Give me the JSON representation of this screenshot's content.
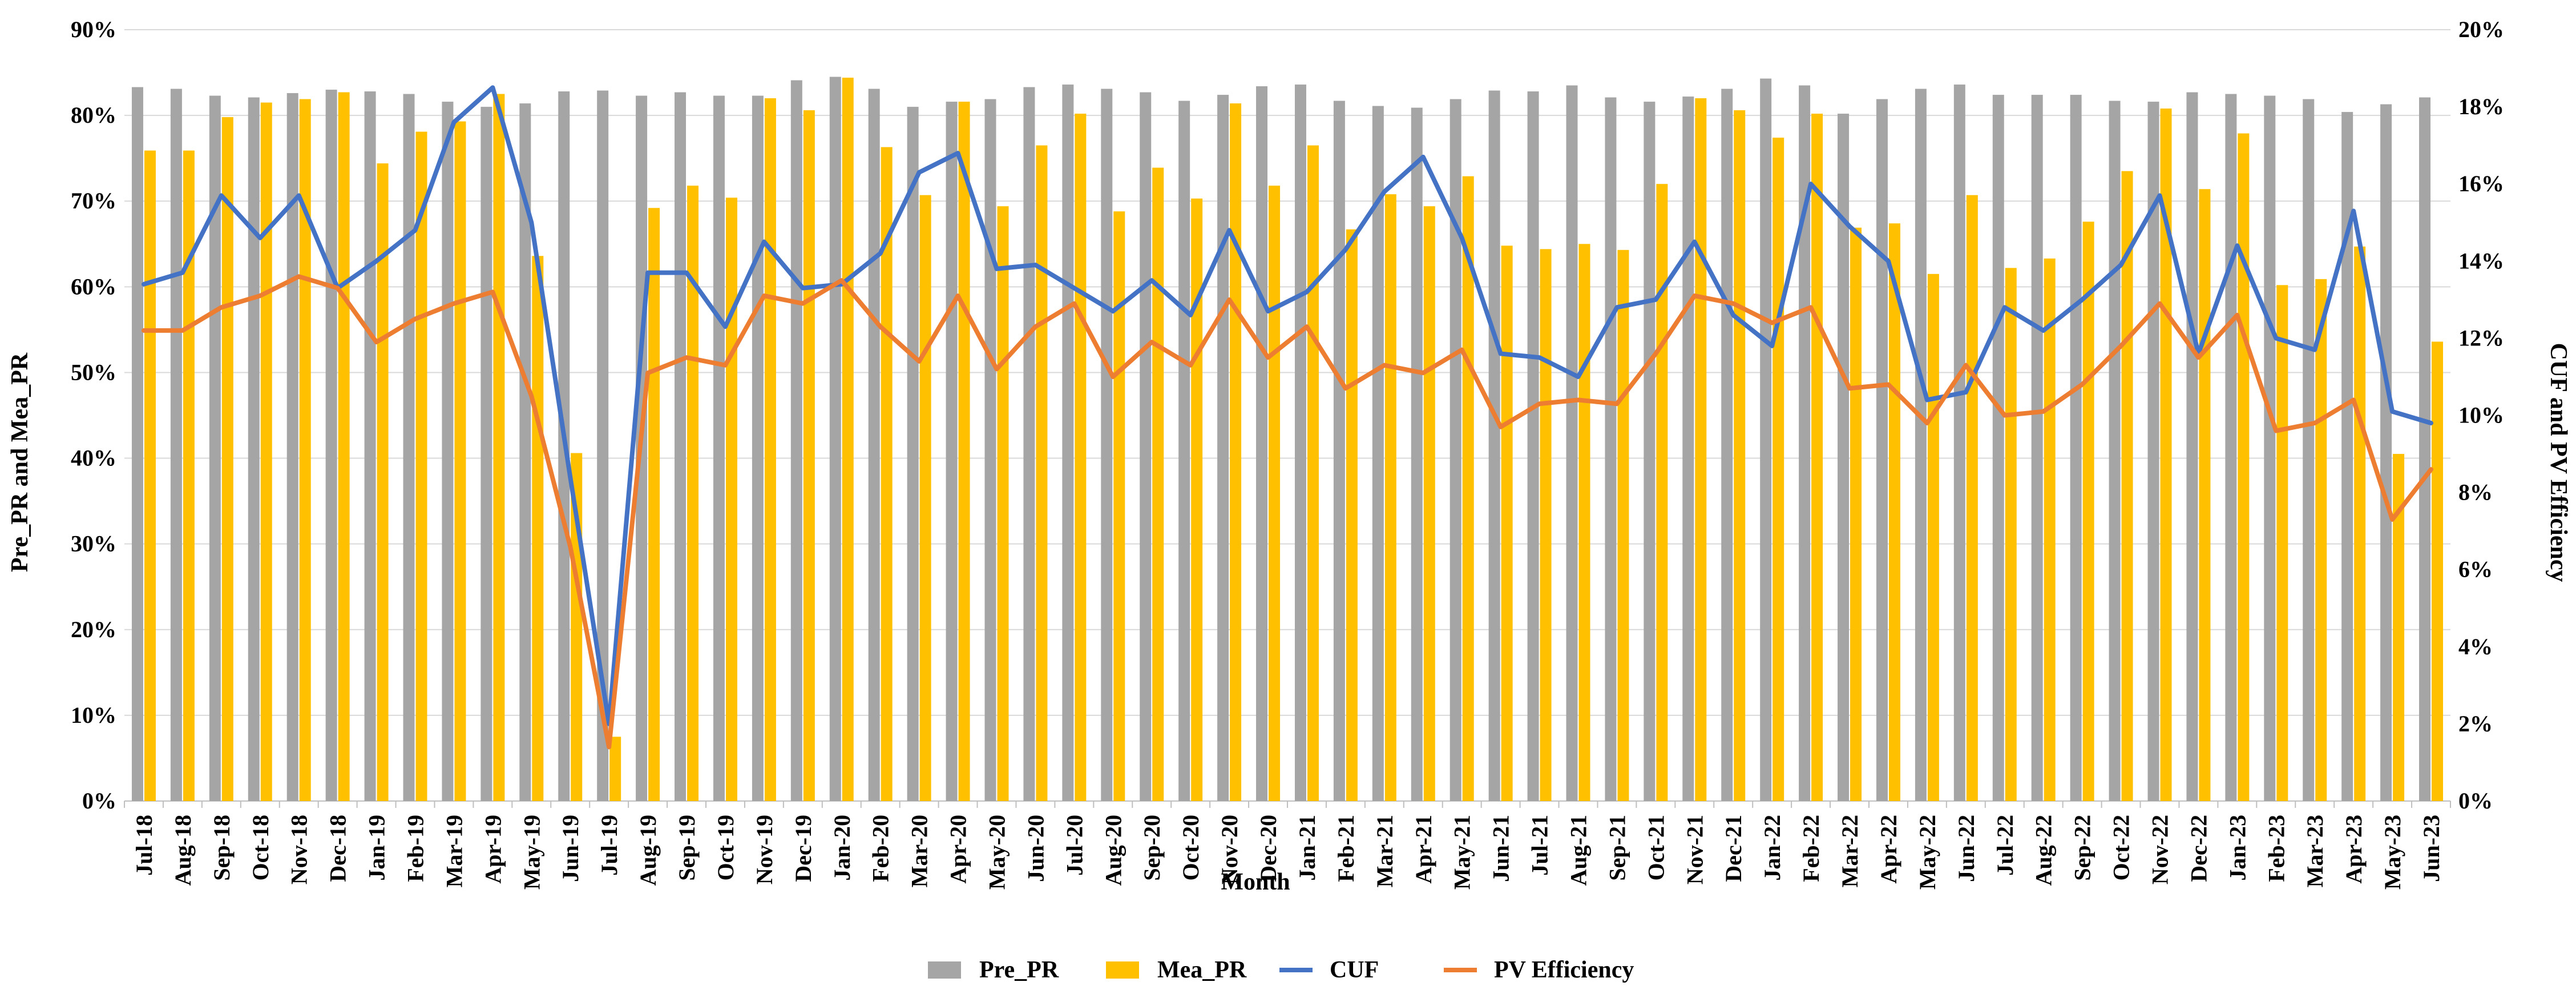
{
  "chart_data": {
    "type": "bar",
    "title": "",
    "xlabel": "Month",
    "ylabel": "Pre_PR and Mea_PR",
    "y2label": "CUF and PV Efficiency",
    "ylim": [
      0,
      90
    ],
    "y2lim": [
      0,
      20
    ],
    "yticks": [
      "0%",
      "10%",
      "20%",
      "30%",
      "40%",
      "50%",
      "60%",
      "70%",
      "80%",
      "90%"
    ],
    "y2ticks": [
      "0%",
      "2%",
      "4%",
      "6%",
      "8%",
      "10%",
      "12%",
      "14%",
      "16%",
      "18%",
      "20%"
    ],
    "legend_position": "bottom",
    "categories": [
      "Jul-18",
      "Aug-18",
      "Sep-18",
      "Oct-18",
      "Nov-18",
      "Dec-18",
      "Jan-19",
      "Feb-19",
      "Mar-19",
      "Apr-19",
      "May-19",
      "Jun-19",
      "Jul-19",
      "Aug-19",
      "Sep-19",
      "Oct-19",
      "Nov-19",
      "Dec-19",
      "Jan-20",
      "Feb-20",
      "Mar-20",
      "Apr-20",
      "May-20",
      "Jun-20",
      "Jul-20",
      "Aug-20",
      "Sep-20",
      "Oct-20",
      "Nov-20",
      "Dec-20",
      "Jan-21",
      "Feb-21",
      "Mar-21",
      "Apr-21",
      "May-21",
      "Jun-21",
      "Jul-21",
      "Aug-21",
      "Sep-21",
      "Oct-21",
      "Nov-21",
      "Dec-21",
      "Jan-22",
      "Feb-22",
      "Mar-22",
      "Apr-22",
      "May-22",
      "Jun-22",
      "Jul-22",
      "Aug-22",
      "Sep-22",
      "Oct-22",
      "Nov-22",
      "Dec-22",
      "Jan-23",
      "Feb-23",
      "Mar-23",
      "Apr-23",
      "May-23",
      "Jun-23"
    ],
    "series": [
      {
        "name": "Pre_PR",
        "type": "bar",
        "axis": "left",
        "color": "#A5A5A5",
        "values": [
          83.3,
          83.1,
          82.3,
          82.1,
          82.6,
          83.0,
          82.8,
          82.5,
          81.6,
          81.0,
          81.4,
          82.8,
          82.9,
          82.3,
          82.7,
          82.3,
          82.3,
          84.1,
          84.5,
          83.1,
          81.0,
          81.6,
          81.9,
          83.3,
          83.6,
          83.1,
          82.7,
          81.7,
          82.4,
          83.4,
          83.6,
          81.7,
          81.1,
          80.9,
          81.9,
          82.9,
          82.8,
          83.5,
          82.1,
          81.6,
          82.2,
          83.1,
          84.3,
          83.5,
          80.2,
          81.9,
          83.1,
          83.6,
          82.4,
          82.4,
          82.4,
          81.7,
          81.6,
          82.7,
          82.5,
          82.3,
          81.9,
          80.4,
          81.3,
          82.1
        ]
      },
      {
        "name": "Mea_PR",
        "type": "bar",
        "axis": "left",
        "color": "#FFC000",
        "values": [
          75.9,
          75.9,
          79.8,
          81.5,
          81.9,
          82.7,
          74.4,
          78.1,
          79.3,
          82.5,
          63.6,
          40.6,
          7.5,
          69.2,
          71.8,
          70.4,
          82.0,
          80.6,
          84.4,
          76.3,
          70.7,
          81.6,
          69.4,
          76.5,
          80.2,
          68.8,
          73.9,
          70.3,
          81.4,
          71.8,
          76.5,
          66.7,
          70.8,
          69.4,
          72.9,
          64.8,
          64.4,
          65.0,
          64.3,
          72.0,
          82.0,
          80.6,
          77.4,
          80.2,
          66.9,
          67.4,
          61.5,
          70.7,
          62.2,
          63.3,
          67.6,
          73.5,
          80.8,
          71.4,
          77.9,
          60.2,
          60.9,
          64.7,
          40.5,
          53.6
        ]
      },
      {
        "name": "CUF",
        "type": "line",
        "axis": "right",
        "color": "#4472C4",
        "values": [
          13.4,
          13.7,
          15.7,
          14.6,
          15.7,
          13.3,
          14.0,
          14.8,
          17.6,
          18.5,
          15.0,
          8.4,
          2.0,
          13.7,
          13.7,
          12.3,
          14.5,
          13.3,
          13.4,
          14.2,
          16.3,
          16.8,
          13.8,
          13.9,
          13.3,
          12.7,
          13.5,
          12.6,
          14.8,
          12.7,
          13.2,
          14.3,
          15.8,
          16.7,
          14.6,
          11.6,
          11.5,
          11.0,
          12.8,
          13.0,
          14.5,
          12.6,
          11.8,
          16.0,
          14.9,
          14.0,
          10.4,
          10.6,
          12.8,
          12.2,
          13.0,
          13.9,
          15.7,
          11.6,
          14.4,
          12.0,
          11.7,
          15.3,
          10.1,
          9.8
        ]
      },
      {
        "name": "PV Efficiency",
        "type": "line",
        "axis": "right",
        "color": "#ED7D31",
        "values": [
          12.2,
          12.2,
          12.8,
          13.1,
          13.6,
          13.3,
          11.9,
          12.5,
          12.9,
          13.2,
          10.5,
          6.6,
          1.4,
          11.1,
          11.5,
          11.3,
          13.1,
          12.9,
          13.5,
          12.3,
          11.4,
          13.1,
          11.2,
          12.3,
          12.9,
          11.0,
          11.9,
          11.3,
          13.0,
          11.5,
          12.3,
          10.7,
          11.3,
          11.1,
          11.7,
          9.7,
          10.3,
          10.4,
          10.3,
          11.6,
          13.1,
          12.9,
          12.4,
          12.8,
          10.7,
          10.8,
          9.8,
          11.3,
          10.0,
          10.1,
          10.8,
          11.8,
          12.9,
          11.5,
          12.6,
          9.6,
          9.8,
          10.4,
          7.3,
          8.6
        ]
      }
    ]
  }
}
